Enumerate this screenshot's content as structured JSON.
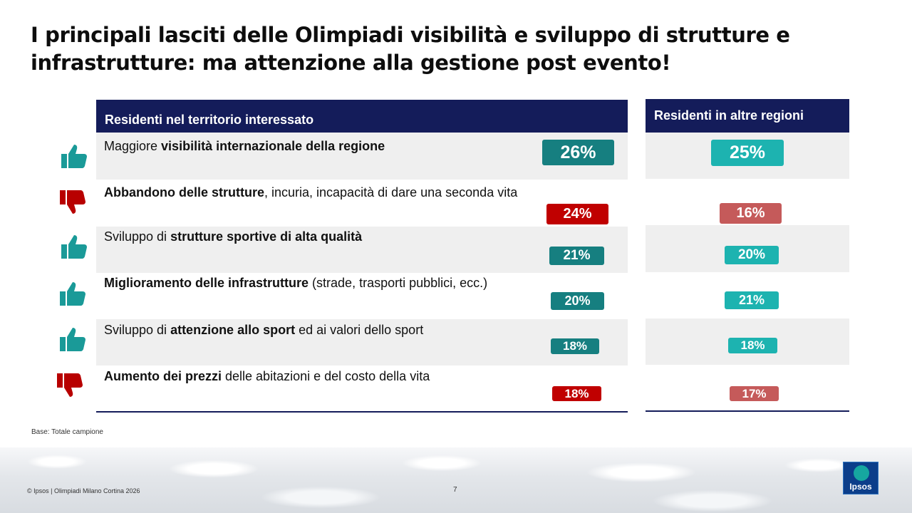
{
  "title": "I principali lasciti delle Olimpiadi visibilità e sviluppo di strutture e infrastrutture: ma attenzione alla gestione post evento!",
  "headers": {
    "left": "Residenti nel territorio interessato",
    "right": "Residenti in altre regioni"
  },
  "rows": [
    {
      "icon": "thumbs-up-icon",
      "text_pre": "Maggiore ",
      "text_bold": "visibilità internazionale della regione",
      "text_post": "",
      "left_value": "26%",
      "right_value": "25%"
    },
    {
      "icon": "thumbs-down-icon",
      "text_pre": "",
      "text_bold": "Abbandono delle strutture",
      "text_post": ", incuria, incapacità di dare una seconda vita",
      "left_value": "24%",
      "right_value": "16%"
    },
    {
      "icon": "thumbs-up-icon",
      "text_pre": "Sviluppo di ",
      "text_bold": "strutture sportive di alta qualità",
      "text_post": "",
      "left_value": "21%",
      "right_value": "20%"
    },
    {
      "icon": "thumbs-up-icon",
      "text_pre": "",
      "text_bold": "Miglioramento delle infrastrutture",
      "text_post": " (strade, trasporti pubblici, ecc.)",
      "left_value": "20%",
      "right_value": "21%"
    },
    {
      "icon": "thumbs-up-icon",
      "text_pre": "Sviluppo di ",
      "text_bold": "attenzione allo sport",
      "text_post": " ed ai valori dello sport",
      "left_value": "18%",
      "right_value": "18%"
    },
    {
      "icon": "thumbs-down-icon",
      "text_pre": "",
      "text_bold": "Aumento dei prezzi",
      "text_post": " delle abitazioni e del costo della vita",
      "left_value": "18%",
      "right_value": "17%"
    }
  ],
  "colors": {
    "header_navy": "#141c5a",
    "left_positive": "#167f80",
    "right_positive": "#1db3b0",
    "left_negative": "#c00000",
    "right_negative": "#c55a5a",
    "icon_positive": "#1a9a98",
    "icon_negative": "#b80000"
  },
  "base_note": "Base: Totale campione",
  "footer": {
    "copyright": "© Ipsos | Olimpiadi Milano Cortina 2026",
    "page_number": "7",
    "logo_text": "Ipsos"
  }
}
